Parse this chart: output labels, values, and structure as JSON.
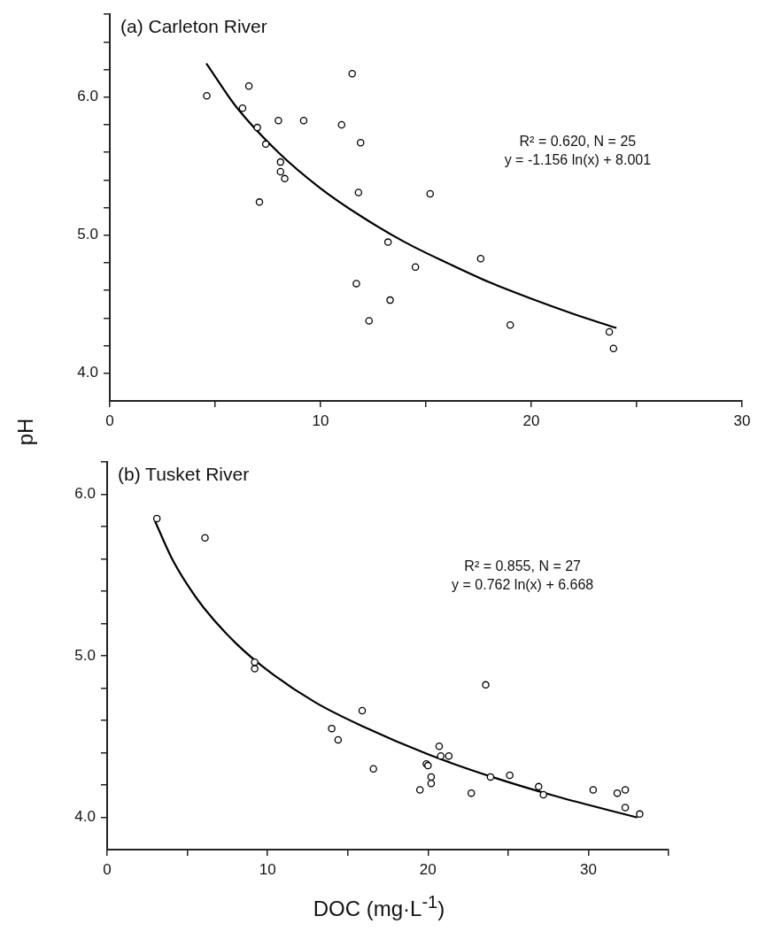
{
  "chart_data": [
    {
      "type": "scatter",
      "title": "(a) Carleton River",
      "ylabel": "pH",
      "marker": "circle",
      "xlim": [
        0,
        30
      ],
      "xticks": [
        0,
        {
          "value": 5,
          "label": null
        },
        10,
        {
          "value": 15,
          "label": null
        },
        20,
        {
          "value": 25,
          "label": null
        },
        30
      ],
      "ylim": [
        3.8,
        6.6
      ],
      "yticks": [
        {
          "value": 4.0,
          "label": "4.0"
        },
        {
          "value": 4.2,
          "label": null
        },
        {
          "value": 4.4,
          "label": null
        },
        {
          "value": 4.6,
          "label": null
        },
        {
          "value": 4.8,
          "label": null
        },
        {
          "value": 5.0,
          "label": "5.0"
        },
        {
          "value": 5.2,
          "label": null
        },
        {
          "value": 5.4,
          "label": null
        },
        {
          "value": 5.6,
          "label": null
        },
        {
          "value": 5.8,
          "label": null
        },
        {
          "value": 6.0,
          "label": "6.0"
        },
        {
          "value": 6.2,
          "label": null
        },
        {
          "value": 6.4,
          "label": null
        },
        {
          "value": 6.6,
          "label": null
        }
      ],
      "annotations": [
        "R² = 0.620, N = 25",
        "y = -1.156 ln(x) + 8.001"
      ],
      "series": [
        {
          "color": "#000000",
          "x": [
            4.6,
            6.6,
            6.3,
            7.0,
            7.4,
            7.1,
            8.0,
            8.1,
            8.1,
            8.3,
            9.2,
            11.0,
            11.5,
            11.9,
            11.8,
            15.2,
            13.2,
            11.7,
            13.3,
            12.3,
            14.5,
            17.6,
            19.0,
            23.7,
            23.9
          ],
          "values": [
            6.01,
            6.08,
            5.92,
            5.78,
            5.66,
            5.24,
            5.83,
            5.53,
            5.46,
            5.41,
            5.83,
            5.8,
            6.17,
            5.67,
            5.31,
            5.3,
            4.95,
            4.65,
            4.53,
            4.38,
            4.77,
            4.83,
            4.35,
            4.3,
            4.18
          ]
        },
        {
          "type": "line",
          "marker": "none",
          "color": "#000000",
          "x": [
            4.6,
            6,
            8,
            10,
            12,
            14,
            16,
            18,
            20,
            22,
            24
          ],
          "values": [
            6.24,
            5.93,
            5.6,
            5.34,
            5.13,
            4.95,
            4.8,
            4.66,
            4.54,
            4.43,
            4.33
          ]
        }
      ]
    },
    {
      "type": "scatter",
      "title": "(b) Tusket River",
      "xlabel": "DOC (mg·L$^{-1}$)",
      "marker": "circle",
      "xlim": [
        0,
        35
      ],
      "xticks": [
        0,
        {
          "value": 5,
          "label": null
        },
        10,
        {
          "value": 15,
          "label": null
        },
        20,
        {
          "value": 25,
          "label": null
        },
        30,
        {
          "value": 35,
          "label": null
        }
      ],
      "ylim": [
        3.8,
        6.2
      ],
      "yticks": [
        {
          "value": 4.0,
          "label": "4.0"
        },
        {
          "value": 4.2,
          "label": null
        },
        {
          "value": 4.4,
          "label": null
        },
        {
          "value": 4.6,
          "label": null
        },
        {
          "value": 4.8,
          "label": null
        },
        {
          "value": 5.0,
          "label": "5.0"
        },
        {
          "value": 5.2,
          "label": null
        },
        {
          "value": 5.4,
          "label": null
        },
        {
          "value": 5.6,
          "label": null
        },
        {
          "value": 5.8,
          "label": null
        },
        {
          "value": 6.0,
          "label": "6.0"
        },
        {
          "value": 6.2,
          "label": null
        }
      ],
      "annotations": [
        "R² = 0.855, N = 27",
        "y = 0.762 ln(x) + 6.668"
      ],
      "series": [
        {
          "color": "#000000",
          "x": [
            3.1,
            6.1,
            9.2,
            9.2,
            15.9,
            14.0,
            14.4,
            16.6,
            20.7,
            20.8,
            21.3,
            19.9,
            20.0,
            20.2,
            20.2,
            19.5,
            22.7,
            23.9,
            23.6,
            25.1,
            26.9,
            27.2,
            30.3,
            31.8,
            32.3,
            32.3,
            33.2
          ],
          "values": [
            5.85,
            5.73,
            4.96,
            4.92,
            4.66,
            4.55,
            4.48,
            4.3,
            4.44,
            4.38,
            4.38,
            4.33,
            4.32,
            4.25,
            4.21,
            4.17,
            4.15,
            4.25,
            4.82,
            4.26,
            4.19,
            4.14,
            4.17,
            4.15,
            4.17,
            4.06,
            4.02
          ]
        },
        {
          "type": "line",
          "marker": "none",
          "color": "#000000",
          "x": [
            3,
            4,
            5,
            6,
            8,
            10,
            13,
            16,
            20,
            24,
            28,
            33
          ],
          "values": [
            5.83,
            5.61,
            5.44,
            5.3,
            5.08,
            4.91,
            4.71,
            4.56,
            4.39,
            4.25,
            4.13,
            4.0
          ]
        }
      ]
    }
  ]
}
